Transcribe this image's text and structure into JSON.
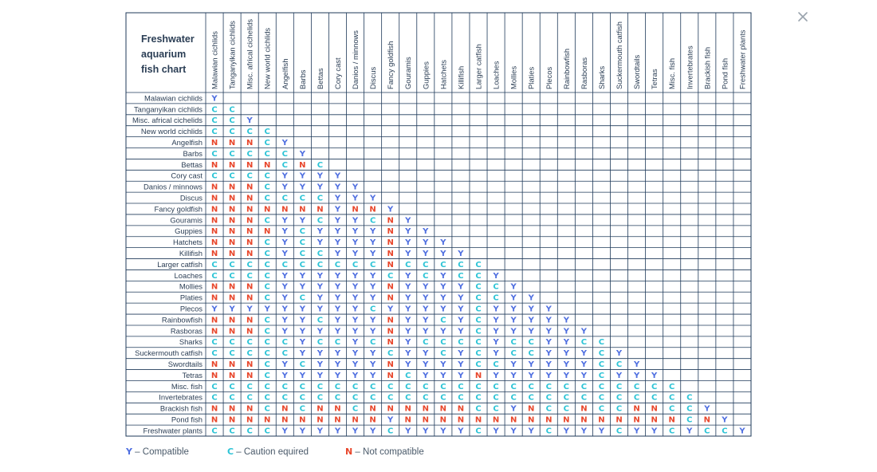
{
  "colors": {
    "Y": "#4f6fe0",
    "C": "#2ec4d6",
    "N": "#e8472c",
    "grid": "#1f3a5a",
    "text": "#2b3e55"
  },
  "close_icon": "close-icon",
  "legend": [
    {
      "symbol": "Y",
      "label": "– Compatible"
    },
    {
      "symbol": "C",
      "label": "– Caution equired"
    },
    {
      "symbol": "N",
      "label": "– Not compatible"
    }
  ],
  "chart_data": {
    "type": "table",
    "title": [
      "Freshwater",
      "aquarium",
      "fish chart"
    ],
    "columns": [
      "Malawian cichlids",
      "Tanganyikan cichlids",
      "Misc. africal cichelids",
      "New world cichlids",
      "Angelfish",
      "Barbs",
      "Bettas",
      "Cory cast",
      "Danios / minnows",
      "Discus",
      "Fancy goldfish",
      "Gouramis",
      "Guppies",
      "Hatchets",
      "Killifish",
      "Larger catfish",
      "Loaches",
      "Mollies",
      "Platies",
      "Plecos",
      "Rainbowfish",
      "Rasboras",
      "Sharks",
      "Suckermouth catfish",
      "Swordtails",
      "Tetras",
      "Misc. fish",
      "Invertebrates",
      "Brackish fish",
      "Pond fish",
      "Freshwater plants"
    ],
    "rows": [
      {
        "label": "Malawian cichlids",
        "values": "Y"
      },
      {
        "label": "Tanganyikan cichlids",
        "values": "CC"
      },
      {
        "label": "Misc. africal cichelids",
        "values": "CCY"
      },
      {
        "label": "New world cichlids",
        "values": "CCCC"
      },
      {
        "label": "Angelfish",
        "values": "NNNCY"
      },
      {
        "label": "Barbs",
        "values": "CCCCCY"
      },
      {
        "label": "Bettas",
        "values": "NNNNCNC"
      },
      {
        "label": "Cory cast",
        "values": "CCCCYYYY"
      },
      {
        "label": "Danios / minnows",
        "values": "NNNCYYYYY"
      },
      {
        "label": "Discus",
        "values": "NNNCCCCYYY"
      },
      {
        "label": "Fancy goldfish",
        "values": "NNNNNNNYNNY"
      },
      {
        "label": "Gouramis",
        "values": "NNNCYYCYYCNY"
      },
      {
        "label": "Guppies",
        "values": "NNNNYCYYYYNYY"
      },
      {
        "label": "Hatchets",
        "values": "NNNCYCYYYYNYYY"
      },
      {
        "label": "Killifish",
        "values": "NNNCYCCYYYNYYYY"
      },
      {
        "label": "Larger catfish",
        "values": "CCCCCCCCCCNCCCCC"
      },
      {
        "label": "Loaches",
        "values": "CCCCYYYYYYCYCYCCY"
      },
      {
        "label": "Mollies",
        "values": "NNNCYYYYYYNYYYYCCY"
      },
      {
        "label": "Platies",
        "values": "NNNCYCYYYYNYYYYCCYY"
      },
      {
        "label": "Plecos",
        "values": "YYYYYYYYYCYYYYYCYYYY"
      },
      {
        "label": "Rainbowfish",
        "values": "NNNCYYCYYYNYYCYCYYYYY"
      },
      {
        "label": "Rasboras",
        "values": "NNNCYYYYYYNYYYYCYYYYYY"
      },
      {
        "label": "Sharks",
        "values": "CCCCCYCCYCNYCCCCYCCYYCC"
      },
      {
        "label": "Suckermouth catfish",
        "values": "CCCCCYYYYYCYYCYCYCCYYYCY"
      },
      {
        "label": "Swordtails",
        "values": "NNNCYCYYYYNYYYYCCYYYYYCCY"
      },
      {
        "label": "Tetras",
        "values": "NNNCYYYYYYNCYYYNYYYYYYCYYY"
      },
      {
        "label": "Misc. fish",
        "values": "CCCCCCCCCCCCCCCCCCCCCCCCCCC"
      },
      {
        "label": "Invertebrates",
        "values": "CCCCCCCCCCCCCCCCCCCCCCCCCCCC"
      },
      {
        "label": "Brackish fish",
        "values": "NNNCNCNNCNNNNNNCCYNCCNCCNNCCY"
      },
      {
        "label": "Pond fish",
        "values": "NNNNNNNNNNYNNNNNNNNNNNNNNNNCNY"
      },
      {
        "label": "Freshwater plants",
        "values": "CCCCYYYYYYCYYYYCYYYCYYYCYYCYCCY"
      }
    ]
  }
}
